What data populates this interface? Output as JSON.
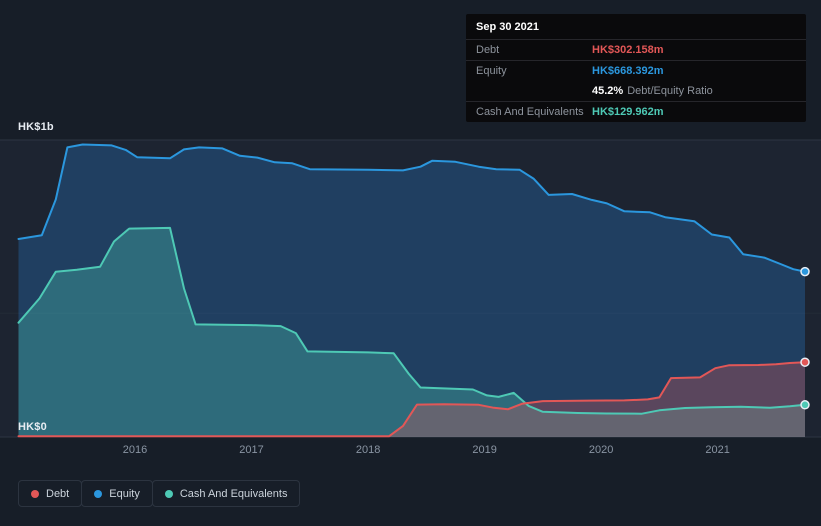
{
  "colors": {
    "debt": "#e25757",
    "equity": "#2b97de",
    "cash": "#4ec9b5",
    "background": "#171e28"
  },
  "tooltip": {
    "date": "Sep 30 2021",
    "debt_label": "Debt",
    "debt_value": "HK$302.158m",
    "equity_label": "Equity",
    "equity_value": "HK$668.392m",
    "ratio_value": "45.2%",
    "ratio_label": "Debt/Equity Ratio",
    "cash_label": "Cash And Equivalents",
    "cash_value": "HK$129.962m"
  },
  "axis": {
    "y_top_label": "HK$1b",
    "y_bottom_label": "HK$0",
    "x_ticks": [
      "2016",
      "2017",
      "2018",
      "2019",
      "2020",
      "2021"
    ]
  },
  "legend": {
    "debt": "Debt",
    "equity": "Equity",
    "cash": "Cash And Equivalents"
  },
  "chart_data": {
    "type": "area",
    "title": "",
    "xlabel": "",
    "ylabel": "",
    "unit": "HK$ millions",
    "grid": true,
    "legend_position": "bottom-left",
    "x_range": [
      2015.0,
      2021.75
    ],
    "ylim": [
      0,
      1200
    ],
    "gridlines": [
      1200,
      500,
      0
    ],
    "x_tick_years": [
      2016,
      2017,
      2018,
      2019,
      2020,
      2021
    ],
    "end_date": "Sep 30 2021",
    "end_values": {
      "Debt": 302.158,
      "Equity": 668.392,
      "CashAndEquivalents": 129.962,
      "DebtEquityRatioPct": 45.2
    },
    "series": [
      {
        "name": "Equity",
        "color": "#2b97de",
        "fill": "rgba(43,132,222,0.28)",
        "points": [
          [
            2015.0,
            800
          ],
          [
            2015.2,
            815
          ],
          [
            2015.32,
            960
          ],
          [
            2015.42,
            1170
          ],
          [
            2015.55,
            1182
          ],
          [
            2015.8,
            1178
          ],
          [
            2015.92,
            1160
          ],
          [
            2016.02,
            1130
          ],
          [
            2016.3,
            1126
          ],
          [
            2016.42,
            1162
          ],
          [
            2016.55,
            1170
          ],
          [
            2016.75,
            1166
          ],
          [
            2016.9,
            1136
          ],
          [
            2017.05,
            1129
          ],
          [
            2017.2,
            1110
          ],
          [
            2017.35,
            1106
          ],
          [
            2017.5,
            1082
          ],
          [
            2018.0,
            1080
          ],
          [
            2018.3,
            1077
          ],
          [
            2018.45,
            1092
          ],
          [
            2018.55,
            1116
          ],
          [
            2018.75,
            1112
          ],
          [
            2018.95,
            1092
          ],
          [
            2019.1,
            1082
          ],
          [
            2019.3,
            1080
          ],
          [
            2019.42,
            1044
          ],
          [
            2019.55,
            978
          ],
          [
            2019.75,
            982
          ],
          [
            2019.92,
            958
          ],
          [
            2020.05,
            944
          ],
          [
            2020.2,
            912
          ],
          [
            2020.42,
            908
          ],
          [
            2020.55,
            888
          ],
          [
            2020.8,
            872
          ],
          [
            2020.95,
            818
          ],
          [
            2021.1,
            806
          ],
          [
            2021.22,
            738
          ],
          [
            2021.4,
            725
          ],
          [
            2021.55,
            697
          ],
          [
            2021.65,
            678
          ],
          [
            2021.75,
            668.392
          ]
        ]
      },
      {
        "name": "Cash And Equivalents",
        "color": "#4ec9b5",
        "fill": "rgba(78,201,181,0.32)",
        "points": [
          [
            2015.0,
            462
          ],
          [
            2015.18,
            560
          ],
          [
            2015.32,
            668
          ],
          [
            2015.5,
            676
          ],
          [
            2015.7,
            688
          ],
          [
            2015.82,
            790
          ],
          [
            2015.95,
            842
          ],
          [
            2016.3,
            845
          ],
          [
            2016.42,
            600
          ],
          [
            2016.52,
            455
          ],
          [
            2017.0,
            452
          ],
          [
            2017.25,
            448
          ],
          [
            2017.38,
            420
          ],
          [
            2017.48,
            346
          ],
          [
            2018.0,
            342
          ],
          [
            2018.22,
            338
          ],
          [
            2018.35,
            255
          ],
          [
            2018.45,
            200
          ],
          [
            2018.9,
            192
          ],
          [
            2019.02,
            168
          ],
          [
            2019.12,
            162
          ],
          [
            2019.25,
            178
          ],
          [
            2019.38,
            125
          ],
          [
            2019.5,
            102
          ],
          [
            2019.8,
            97
          ],
          [
            2020.05,
            95
          ],
          [
            2020.35,
            94
          ],
          [
            2020.5,
            108
          ],
          [
            2020.72,
            117
          ],
          [
            2020.95,
            120
          ],
          [
            2021.2,
            122
          ],
          [
            2021.45,
            118
          ],
          [
            2021.62,
            124
          ],
          [
            2021.75,
            129.962
          ]
        ]
      },
      {
        "name": "Debt",
        "color": "#e25757",
        "fill": "rgba(226,87,87,0.30)",
        "points": [
          [
            2015.0,
            3
          ],
          [
            2018.18,
            3
          ],
          [
            2018.3,
            45
          ],
          [
            2018.42,
            131
          ],
          [
            2018.65,
            132
          ],
          [
            2018.95,
            130
          ],
          [
            2019.08,
            118
          ],
          [
            2019.2,
            112
          ],
          [
            2019.32,
            134
          ],
          [
            2019.5,
            145
          ],
          [
            2019.9,
            147
          ],
          [
            2020.2,
            148
          ],
          [
            2020.4,
            152
          ],
          [
            2020.5,
            160
          ],
          [
            2020.6,
            238
          ],
          [
            2020.85,
            241
          ],
          [
            2020.98,
            278
          ],
          [
            2021.1,
            290
          ],
          [
            2021.35,
            291
          ],
          [
            2021.5,
            294
          ],
          [
            2021.62,
            299
          ],
          [
            2021.75,
            302.158
          ]
        ]
      }
    ]
  }
}
